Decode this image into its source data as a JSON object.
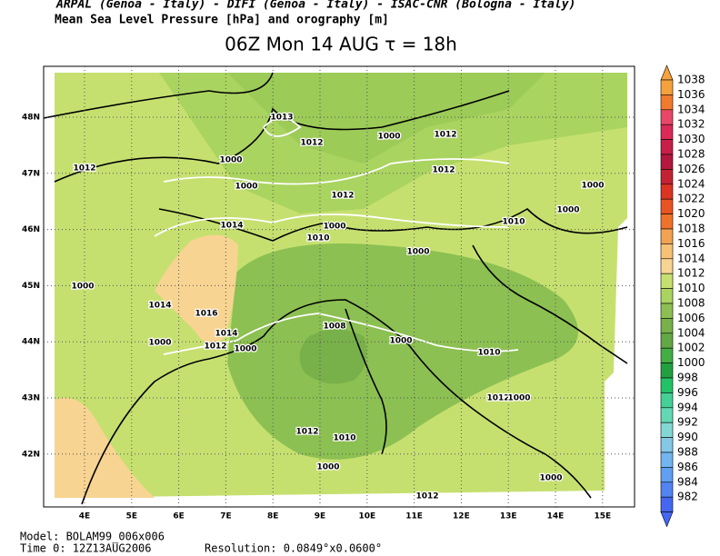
{
  "header": {
    "agencies": "ARPAL (Genoa - Italy)  -  DIFI (Genoa - Italy)  -  ISAC-CNR (Bologna - Italy)",
    "field": "Mean Sea Level Pressure [hPa] and orography [m]",
    "title": "06Z Mon 14 AUG  τ = 18h"
  },
  "map": {
    "lat_labels": [
      "48N",
      "47N",
      "46N",
      "45N",
      "44N",
      "43N",
      "42N"
    ],
    "lon_labels": [
      "4E",
      "5E",
      "6E",
      "7E",
      "8E",
      "9E",
      "10E",
      "11E",
      "12E",
      "13E",
      "14E",
      "15E"
    ],
    "contour_labels": [
      "1013",
      "1012",
      "1000",
      "1012",
      "1012",
      "1000",
      "1000",
      "1012",
      "1000",
      "1000",
      "1012",
      "1014",
      "1010",
      "1000",
      "1010",
      "1000",
      "1000",
      "1014",
      "1016",
      "1014",
      "1012",
      "1000",
      "1000",
      "1008",
      "1000",
      "1010",
      "1012",
      "1000",
      "1012",
      "1010",
      "1000",
      "1000",
      "1012"
    ]
  },
  "colorbar": {
    "levels": [
      {
        "label": "1038",
        "color": "#f5a23c"
      },
      {
        "label": "1036",
        "color": "#f27a2e"
      },
      {
        "label": "1034",
        "color": "#e84866"
      },
      {
        "label": "1032",
        "color": "#dc2a56"
      },
      {
        "label": "1030",
        "color": "#c81e48"
      },
      {
        "label": "1028",
        "color": "#b4183c"
      },
      {
        "label": "1026",
        "color": "#c42232"
      },
      {
        "label": "1024",
        "color": "#dc3422"
      },
      {
        "label": "1022",
        "color": "#ea5422"
      },
      {
        "label": "1020",
        "color": "#f0722a"
      },
      {
        "label": "1018",
        "color": "#f2a352"
      },
      {
        "label": "1016",
        "color": "#f8c276"
      },
      {
        "label": "1014",
        "color": "#f8d492"
      },
      {
        "label": "1012",
        "color": "#c6e070"
      },
      {
        "label": "1010",
        "color": "#aad460"
      },
      {
        "label": "1008",
        "color": "#8cc052"
      },
      {
        "label": "1006",
        "color": "#78b04a"
      },
      {
        "label": "1004",
        "color": "#62a844"
      },
      {
        "label": "1002",
        "color": "#44ae44"
      },
      {
        "label": "1000",
        "color": "#22a040"
      },
      {
        "label": "998",
        "color": "#22c266"
      },
      {
        "label": "996",
        "color": "#44d096"
      },
      {
        "label": "994",
        "color": "#62d8b4"
      },
      {
        "label": "992",
        "color": "#84d8d4"
      },
      {
        "label": "990",
        "color": "#84c8e6"
      },
      {
        "label": "988",
        "color": "#72b6f0"
      },
      {
        "label": "986",
        "color": "#60a0f2"
      },
      {
        "label": "984",
        "color": "#5284f2"
      },
      {
        "label": "982",
        "color": "#4466f2"
      }
    ]
  },
  "footer": {
    "model": "Model: BOLAM99_006x006",
    "time": "Time 0: 12Z13AUG2006",
    "resolution": "Resolution: 0.0849°x0.0600°"
  }
}
